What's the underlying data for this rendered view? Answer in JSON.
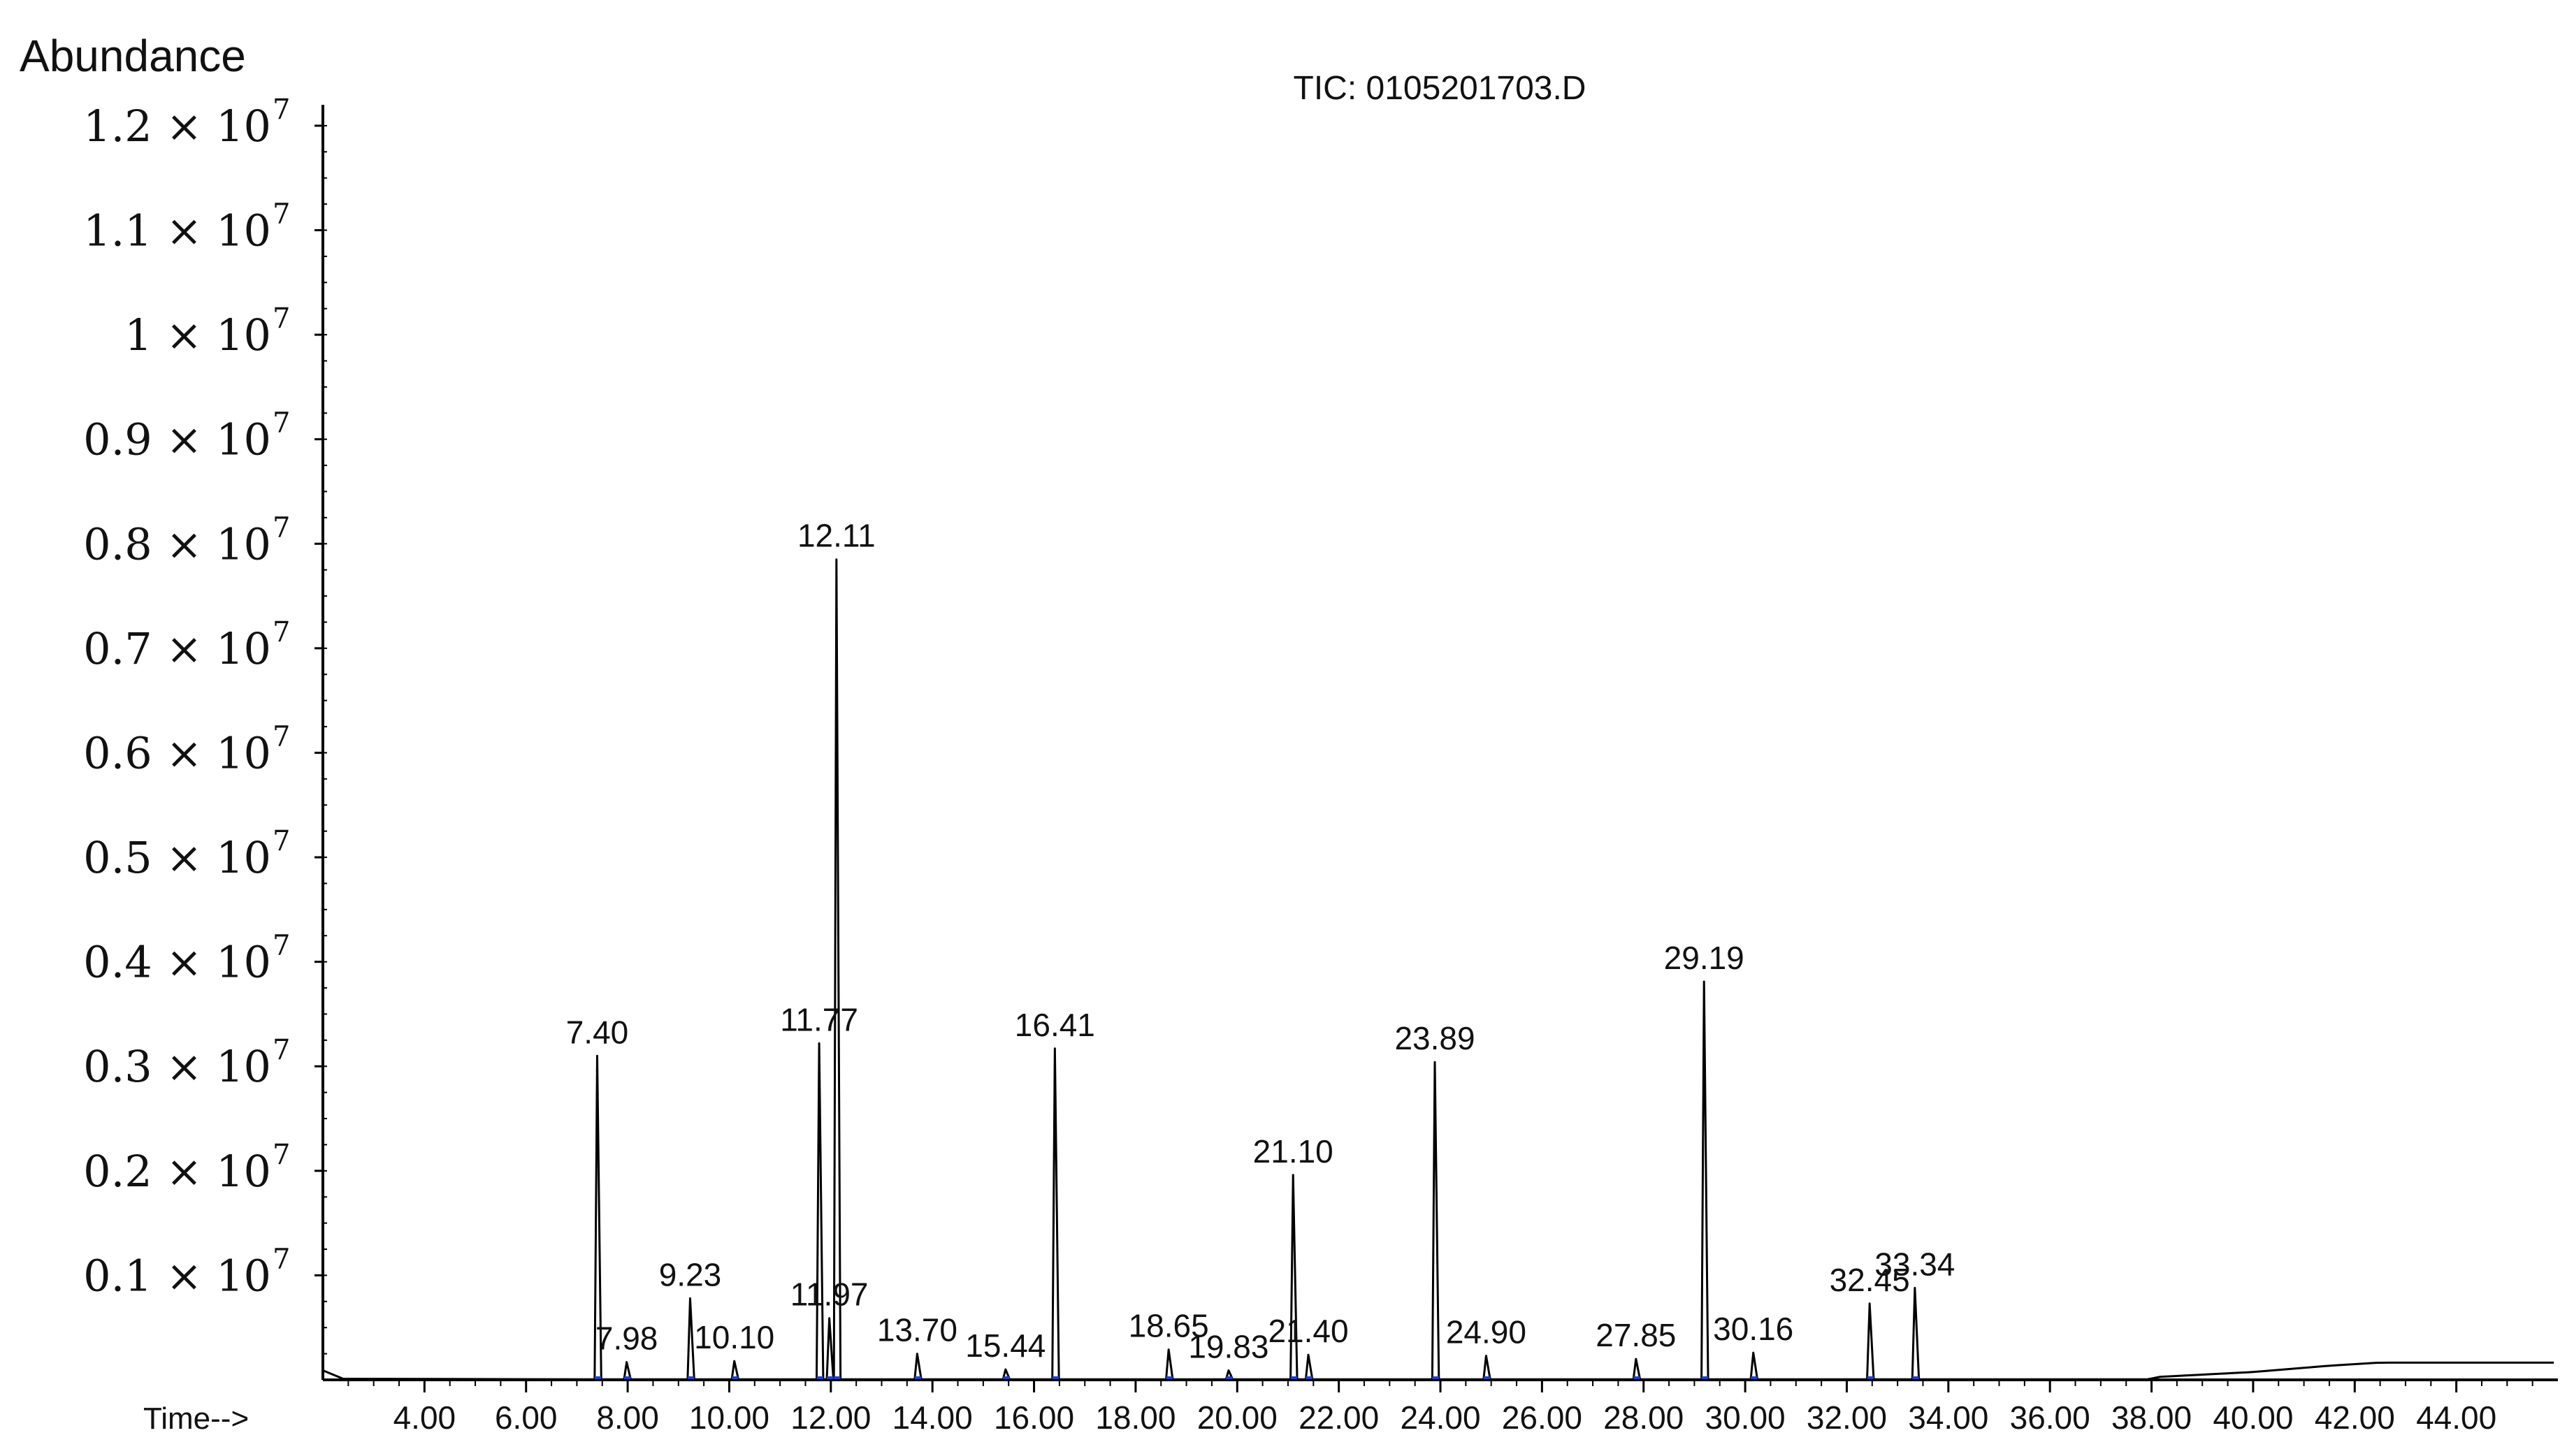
{
  "chart_data": {
    "type": "line",
    "title": "TIC: 0105201703.D",
    "ylabel": "Abundance",
    "xlabel": "Time-->",
    "xlim": [
      2.0,
      46.0
    ],
    "ylim": [
      0,
      12200000
    ],
    "grid": false,
    "x_ticks": [
      "4.00",
      "6.00",
      "8.00",
      "10.00",
      "12.00",
      "14.00",
      "16.00",
      "18.00",
      "20.00",
      "22.00",
      "24.00",
      "26.00",
      "28.00",
      "30.00",
      "32.00",
      "34.00",
      "36.00",
      "38.00",
      "40.00",
      "42.00",
      "44.00"
    ],
    "y_ticks": [
      {
        "value": 1000000,
        "mantissa": "0.1",
        "base": "× 10",
        "exp": "7"
      },
      {
        "value": 2000000,
        "mantissa": "0.2",
        "base": "× 10",
        "exp": "7"
      },
      {
        "value": 3000000,
        "mantissa": "0.3",
        "base": "× 10",
        "exp": "7"
      },
      {
        "value": 4000000,
        "mantissa": "0.4",
        "base": "× 10",
        "exp": "7"
      },
      {
        "value": 5000000,
        "mantissa": "0.5",
        "base": "× 10",
        "exp": "7"
      },
      {
        "value": 6000000,
        "mantissa": "0.6",
        "base": "× 10",
        "exp": "7"
      },
      {
        "value": 7000000,
        "mantissa": "0.7",
        "base": "× 10",
        "exp": "7"
      },
      {
        "value": 8000000,
        "mantissa": "0.8",
        "base": "× 10",
        "exp": "7"
      },
      {
        "value": 9000000,
        "mantissa": "0.9",
        "base": "× 10",
        "exp": "7"
      },
      {
        "value": 10000000,
        "mantissa": "1",
        "base": "× 10",
        "exp": "7"
      },
      {
        "value": 11000000,
        "mantissa": "1.1",
        "base": "× 10",
        "exp": "7"
      },
      {
        "value": 12000000,
        "mantissa": "1.2",
        "base": "× 10",
        "exp": "7"
      }
    ],
    "peaks": [
      {
        "label": "7.40",
        "x": 7.4,
        "y": 3100000
      },
      {
        "label": "7.98",
        "x": 7.98,
        "y": 170000
      },
      {
        "label": "9.23",
        "x": 9.23,
        "y": 780000
      },
      {
        "label": "10.10",
        "x": 10.1,
        "y": 180000
      },
      {
        "label": "11.77",
        "x": 11.77,
        "y": 3220000
      },
      {
        "label": "11.97",
        "x": 11.97,
        "y": 590000
      },
      {
        "label": "12.11",
        "x": 12.11,
        "y": 7850000
      },
      {
        "label": "13.70",
        "x": 13.7,
        "y": 250000
      },
      {
        "label": "15.44",
        "x": 15.44,
        "y": 100000
      },
      {
        "label": "16.41",
        "x": 16.41,
        "y": 3170000
      },
      {
        "label": "18.65",
        "x": 18.65,
        "y": 290000
      },
      {
        "label": "19.83",
        "x": 19.83,
        "y": 90000
      },
      {
        "label": "21.10",
        "x": 21.1,
        "y": 1960000
      },
      {
        "label": "21.40",
        "x": 21.4,
        "y": 240000
      },
      {
        "label": "23.89",
        "x": 23.89,
        "y": 3040000
      },
      {
        "label": "24.90",
        "x": 24.9,
        "y": 230000
      },
      {
        "label": "27.85",
        "x": 27.85,
        "y": 200000
      },
      {
        "label": "29.19",
        "x": 29.19,
        "y": 3810000
      },
      {
        "label": "30.16",
        "x": 30.16,
        "y": 260000
      },
      {
        "label": "32.45",
        "x": 32.45,
        "y": 730000
      },
      {
        "label": "33.34",
        "x": 33.34,
        "y": 880000
      }
    ],
    "baseline_drift": [
      {
        "x": 38.0,
        "y": 20000
      },
      {
        "x": 40.0,
        "y": 70000
      },
      {
        "x": 41.5,
        "y": 130000
      },
      {
        "x": 42.5,
        "y": 160000
      },
      {
        "x": 46.0,
        "y": 160000
      }
    ],
    "colors": {
      "trace": "#000000",
      "integration": "#1a3fd1"
    }
  }
}
